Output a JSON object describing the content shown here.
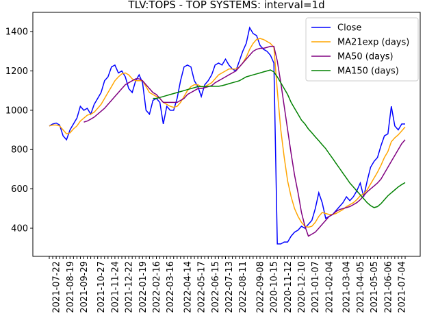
{
  "chart_data": {
    "type": "line",
    "title": "TLV:TOPS - TOP SYSTEMS: interval=1d",
    "categories": [
      null,
      null,
      "2021-07-22",
      null,
      null,
      null,
      "2021-08-19",
      null,
      null,
      null,
      "2021-09-29",
      null,
      null,
      null,
      null,
      "2021-10-27",
      null,
      null,
      null,
      "2021-11-24",
      null,
      null,
      null,
      "2021-12-22",
      null,
      null,
      null,
      "2022-01-19",
      null,
      null,
      null,
      "2022-02-16",
      null,
      null,
      null,
      "2022-03-16",
      null,
      null,
      null,
      null,
      "2022-04-14",
      null,
      null,
      null,
      "2022-05-17",
      null,
      null,
      null,
      "2022-06-15",
      null,
      null,
      null,
      "2022-07-13",
      null,
      null,
      null,
      "2022-08-11",
      null,
      null,
      null,
      null,
      "2022-09-08",
      null,
      null,
      null,
      "2020-10-15",
      null,
      null,
      null,
      "2020-11-12",
      null,
      null,
      null,
      "2020-12-10",
      null,
      null,
      null,
      "2021-01-07",
      null,
      null,
      null,
      "2021-02-04",
      null,
      null,
      null,
      null,
      "2021-03-04",
      null,
      null,
      null,
      "2021-04-05",
      null,
      null,
      null,
      "2021-05-05",
      null,
      null,
      null,
      "2021-06-06",
      null,
      null,
      null,
      "2021-07-04",
      null
    ],
    "series": [
      {
        "name": "Close",
        "color": "#0000ff",
        "values": [
          920,
          930,
          935,
          925,
          870,
          850,
          900,
          930,
          960,
          1020,
          1000,
          1010,
          980,
          1030,
          1060,
          1090,
          1150,
          1170,
          1220,
          1230,
          1190,
          1200,
          1170,
          1110,
          1090,
          1150,
          1180,
          1140,
          1000,
          980,
          1050,
          1060,
          1040,
          930,
          1020,
          1000,
          1000,
          1060,
          1150,
          1220,
          1230,
          1220,
          1150,
          1120,
          1070,
          1130,
          1150,
          1180,
          1230,
          1240,
          1230,
          1260,
          1230,
          1210,
          1200,
          1250,
          1300,
          1340,
          1420,
          1390,
          1380,
          1330,
          1310,
          1300,
          1280,
          1240,
          320,
          320,
          330,
          330,
          360,
          380,
          390,
          410,
          400,
          420,
          440,
          500,
          580,
          530,
          450,
          460,
          470,
          490,
          510,
          530,
          560,
          540,
          560,
          590,
          630,
          560,
          640,
          710,
          740,
          760,
          820,
          870,
          880,
          1020,
          920,
          900,
          930,
          930
        ]
      },
      {
        "name": "MA21exp (days)",
        "color": "#ffa500",
        "values": [
          920,
          925,
          925,
          920,
          900,
          880,
          885,
          905,
          920,
          945,
          960,
          975,
          980,
          990,
          1010,
          1030,
          1060,
          1090,
          1120,
          1150,
          1170,
          1185,
          1190,
          1180,
          1160,
          1150,
          1150,
          1150,
          1120,
          1090,
          1080,
          1070,
          1060,
          1040,
          1030,
          1020,
          1015,
          1020,
          1040,
          1070,
          1100,
          1120,
          1130,
          1130,
          1120,
          1120,
          1130,
          1140,
          1160,
          1180,
          1190,
          1200,
          1210,
          1210,
          1210,
          1220,
          1240,
          1270,
          1310,
          1340,
          1360,
          1365,
          1360,
          1350,
          1340,
          1320,
          1100,
          900,
          760,
          640,
          560,
          500,
          460,
          430,
          410,
          405,
          410,
          430,
          460,
          480,
          475,
          470,
          470,
          475,
          485,
          495,
          510,
          520,
          530,
          545,
          565,
          575,
          595,
          625,
          655,
          685,
          720,
          760,
          790,
          840,
          860,
          875,
          895,
          915
        ]
      },
      {
        "name": "MA50 (days)",
        "color": "#800080",
        "values": [
          null,
          null,
          null,
          null,
          null,
          null,
          null,
          null,
          null,
          null,
          940,
          945,
          955,
          965,
          980,
          995,
          1010,
          1030,
          1050,
          1070,
          1090,
          1110,
          1130,
          1140,
          1150,
          1160,
          1160,
          1150,
          1130,
          1110,
          1090,
          1080,
          1060,
          1040,
          1040,
          1040,
          1040,
          1040,
          1050,
          1060,
          1080,
          1090,
          1100,
          1110,
          1110,
          1115,
          1120,
          1125,
          1140,
          1150,
          1160,
          1170,
          1180,
          1190,
          1200,
          1220,
          1240,
          1260,
          1280,
          1300,
          1310,
          1315,
          1315,
          1320,
          1325,
          1325,
          1250,
          1140,
          1020,
          900,
          780,
          670,
          580,
          480,
          410,
          360,
          370,
          380,
          400,
          420,
          440,
          460,
          470,
          485,
          495,
          500,
          505,
          510,
          520,
          530,
          545,
          565,
          585,
          600,
          615,
          630,
          650,
          680,
          710,
          740,
          770,
          800,
          830,
          850
        ]
      },
      {
        "name": "MA150 (days)",
        "color": "#008000",
        "values": [
          null,
          null,
          null,
          null,
          null,
          null,
          null,
          null,
          null,
          null,
          null,
          null,
          null,
          null,
          null,
          null,
          null,
          null,
          null,
          null,
          null,
          null,
          null,
          null,
          null,
          null,
          null,
          null,
          null,
          null,
          1060,
          1060,
          1065,
          1070,
          1075,
          1080,
          1085,
          1090,
          1095,
          1100,
          1105,
          1110,
          1115,
          1120,
          1120,
          1120,
          1122,
          1122,
          1122,
          1122,
          1125,
          1130,
          1135,
          1140,
          1145,
          1150,
          1160,
          1170,
          1175,
          1180,
          1185,
          1190,
          1195,
          1200,
          1205,
          1195,
          1170,
          1140,
          1110,
          1080,
          1040,
          1010,
          980,
          950,
          930,
          905,
          885,
          865,
          845,
          825,
          805,
          780,
          755,
          730,
          705,
          680,
          655,
          630,
          610,
          590,
          570,
          550,
          530,
          515,
          505,
          510,
          525,
          545,
          565,
          580,
          595,
          610,
          622,
          632
        ]
      }
    ],
    "ylim": [
      257,
      1498
    ],
    "yticks": [
      400,
      600,
      800,
      1000,
      1200,
      1400
    ],
    "legend": "upper right"
  }
}
